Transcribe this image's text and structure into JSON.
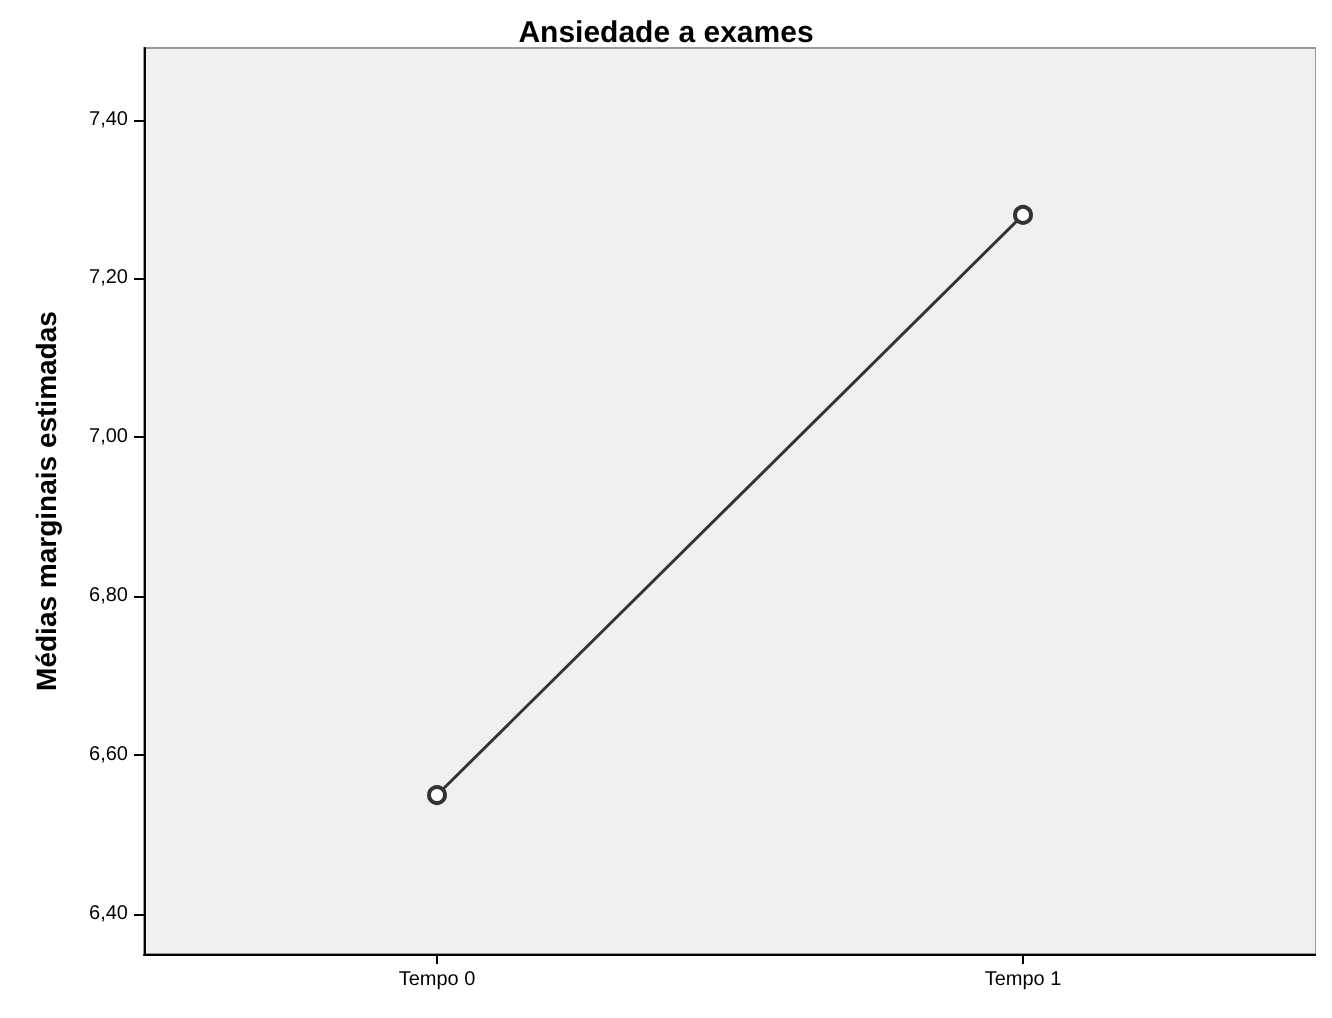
{
  "chart_data": {
    "type": "line",
    "title": "Ansiedade a exames",
    "ylabel": "Médias marginais estimadas",
    "categories": [
      "Tempo 0",
      "Tempo 1"
    ],
    "series": [
      {
        "color": "#333333",
        "values": [
          6.55,
          7.28
        ]
      }
    ],
    "ylim": [
      6.35,
      7.49
    ],
    "yticks": [
      {
        "value": 6.4,
        "label": "6,40"
      },
      {
        "value": 6.6,
        "label": "6,60"
      },
      {
        "value": 6.8,
        "label": "6,80"
      },
      {
        "value": 7.0,
        "label": "7,00"
      },
      {
        "value": 7.2,
        "label": "7,20"
      },
      {
        "value": 7.4,
        "label": "7,40"
      }
    ],
    "marker": "circle",
    "line_style": "solid"
  }
}
